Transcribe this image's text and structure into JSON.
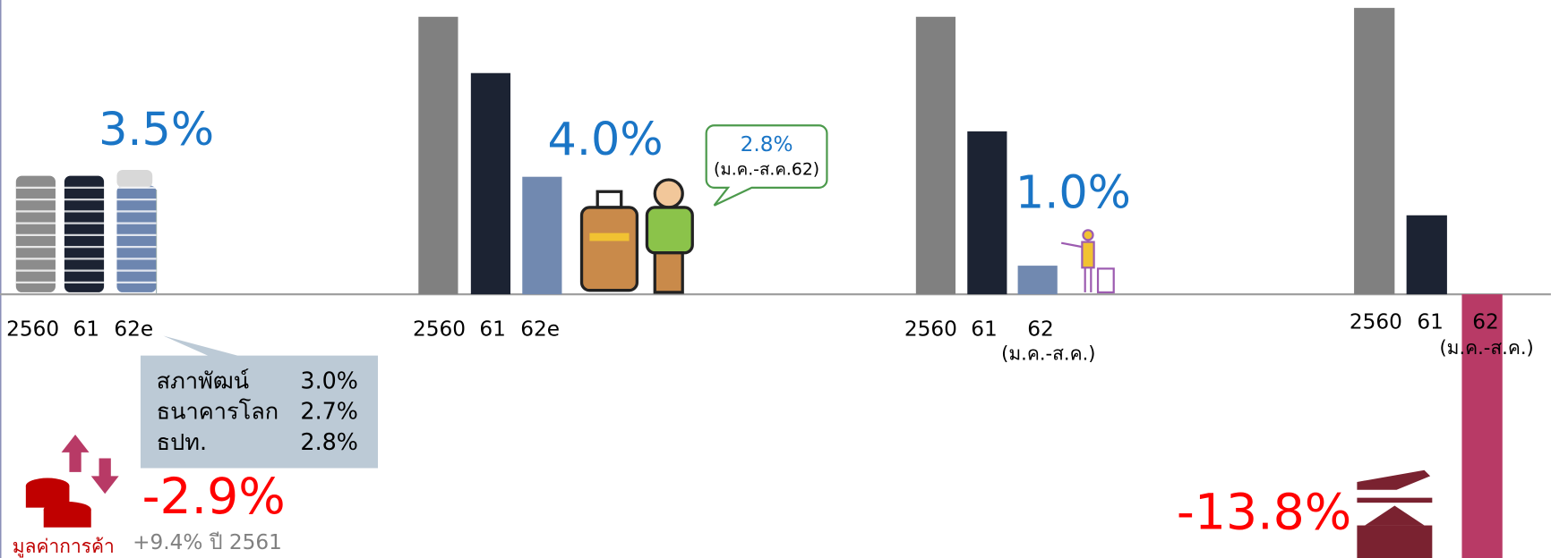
{
  "gdp": {
    "growth": "3.5%",
    "years": [
      "2560",
      "61",
      "62e"
    ],
    "forecasts": [
      [
        "สภาพัฒน์",
        "3.0%"
      ],
      [
        "ธนาคารโลก",
        "2.7%"
      ],
      [
        "ธปท.",
        "2.8%"
      ]
    ]
  },
  "tourists": {
    "growth": "4.0%",
    "years": [
      "2560",
      "61",
      "62e"
    ],
    "bubble_value": "2.8%",
    "bubble_period": "(ม.ค.-ส.ค.62)"
  },
  "tourism": {
    "growth": "1.0%",
    "years": [
      "2560",
      "61",
      "62"
    ],
    "period": "(ม.ค.-ส.ค.)"
  },
  "exports": {
    "growth": "-13.8%",
    "years": [
      "2560",
      "61",
      "62"
    ],
    "period": "(ม.ค.-ส.ค.)"
  },
  "trade": {
    "label": "มูลค่าการค้า",
    "growth": "-2.9%",
    "previous": "+9.4% ปี 2561"
  }
}
